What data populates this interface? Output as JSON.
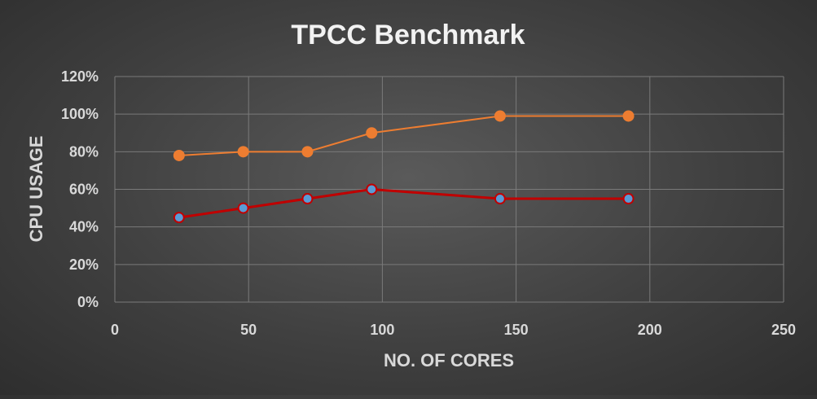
{
  "chart_data": {
    "type": "scatter",
    "title": "TPCC Benchmark",
    "xlabel": "NO. OF CORES",
    "ylabel": "CPU USAGE",
    "xlim": [
      0,
      250
    ],
    "ylim": [
      0,
      1.2
    ],
    "x_ticks": [
      "0",
      "50",
      "100",
      "150",
      "200",
      "250"
    ],
    "y_ticks": [
      "0%",
      "20%",
      "40%",
      "60%",
      "80%",
      "100%",
      "120%"
    ],
    "grid": true,
    "legend": "none",
    "series": [
      {
        "x": [
          24,
          48,
          72,
          96,
          144,
          192
        ],
        "values": [
          0.78,
          0.8,
          0.8,
          0.9,
          0.99,
          0.99
        ],
        "color": "#ed7d31",
        "marker_color": "#ed7d31"
      },
      {
        "x": [
          24,
          48,
          72,
          96,
          144,
          192
        ],
        "values": [
          0.45,
          0.5,
          0.55,
          0.6,
          0.55,
          0.55
        ],
        "color": "#c00000",
        "marker_color": "#5b9bd5"
      }
    ]
  }
}
